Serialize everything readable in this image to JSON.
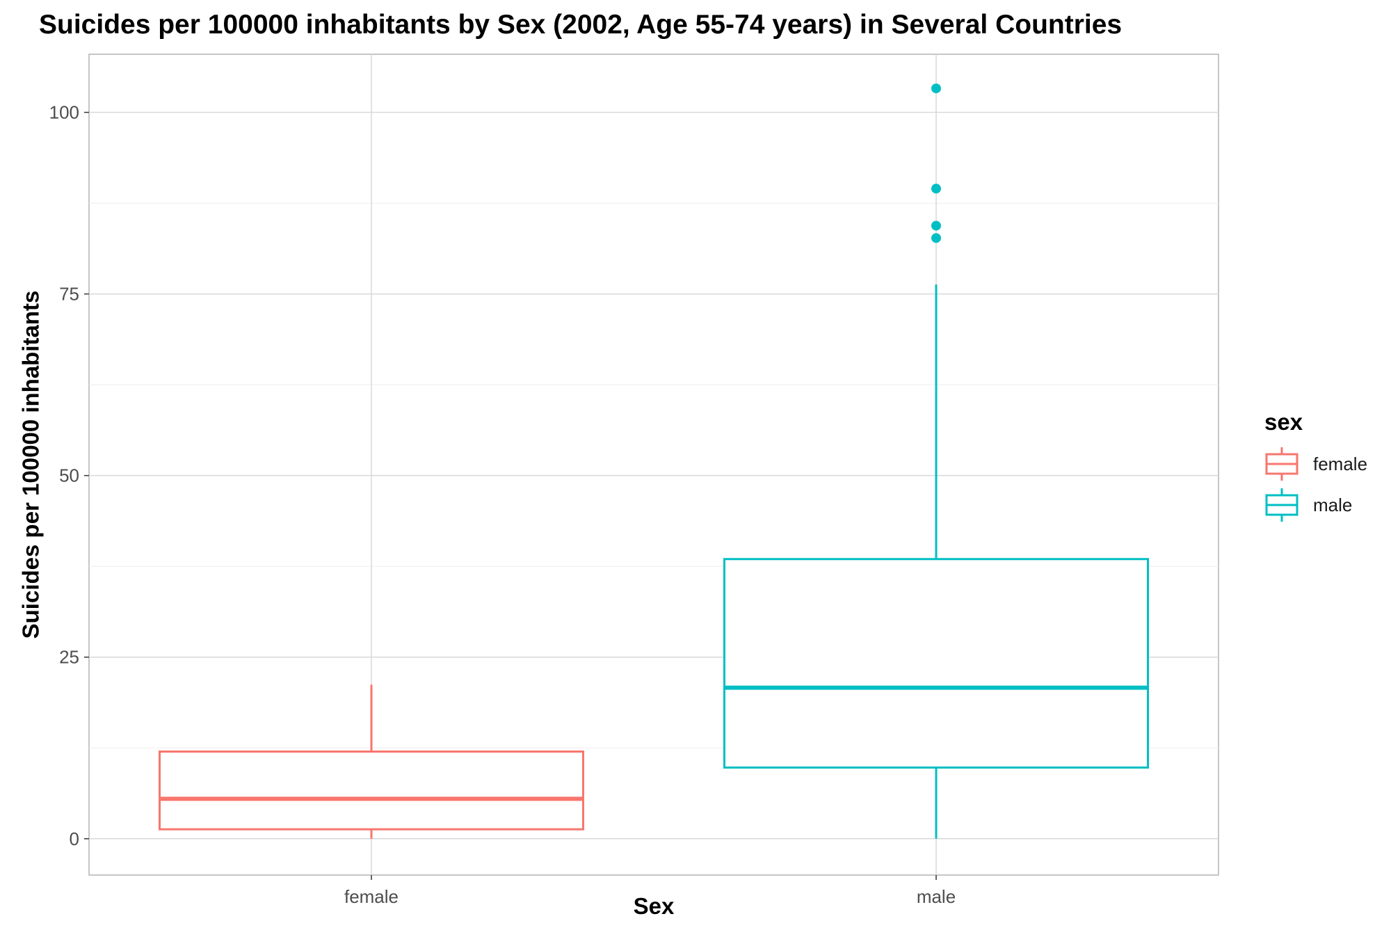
{
  "chart_data": {
    "type": "boxplot",
    "title": "Suicides per 100000 inhabitants by Sex (2002, Age 55-74 years) in Several Countries",
    "xlabel": "Sex",
    "ylabel": "Suicides per 100000 inhabitants",
    "categories": [
      "female",
      "male"
    ],
    "ylim": [
      -5,
      108
    ],
    "yticks": [
      0,
      25,
      50,
      75,
      100
    ],
    "yticks_labels": [
      "0",
      "25",
      "50",
      "75",
      "100"
    ],
    "grid": true,
    "legend": {
      "title": "sex",
      "position": "right",
      "entries": [
        "female",
        "male"
      ]
    },
    "series": [
      {
        "name": "female",
        "color": "#F8766D",
        "min": 0,
        "q1": 1.3,
        "median": 5.5,
        "q3": 12.0,
        "max": 21.2,
        "outliers": []
      },
      {
        "name": "male",
        "color": "#00BFC4",
        "min": 0,
        "q1": 9.8,
        "median": 20.8,
        "q3": 38.5,
        "max": 76.3,
        "outliers": [
          82.7,
          84.4,
          89.5,
          103.3
        ]
      }
    ]
  }
}
